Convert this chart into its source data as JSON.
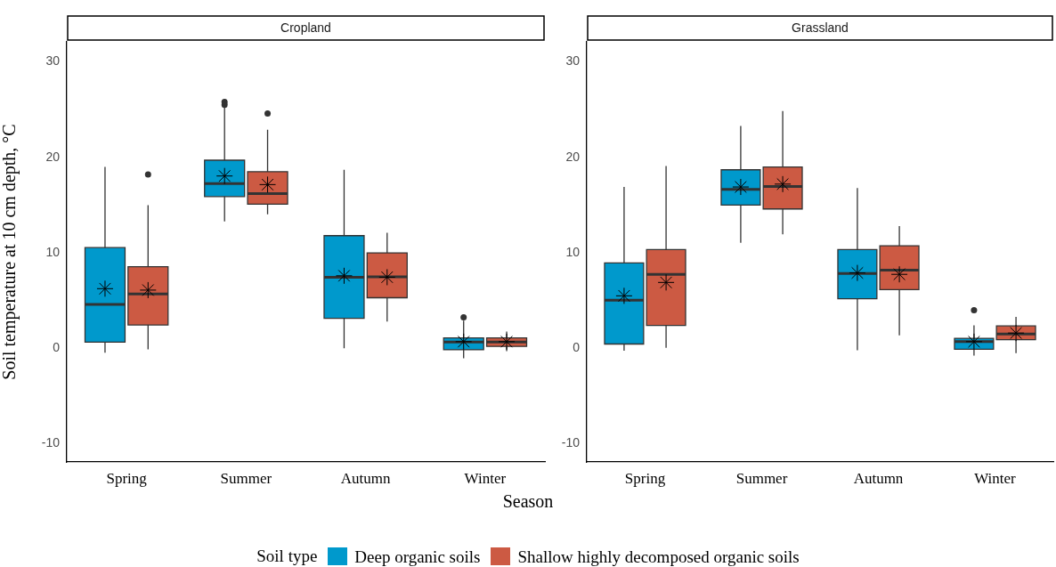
{
  "chart_data": [
    {
      "type": "box",
      "title": "Cropland",
      "xlabel": "Season",
      "ylabel": "Soil temperature at 10 cm depth, °C",
      "legend": "bottom",
      "legend_title": "Soil type",
      "grid": false,
      "categories": [
        "Spring",
        "Summer",
        "Autumn",
        "Winter"
      ],
      "ylim": [
        -11.9,
        32.1
      ],
      "yticks": [
        -10,
        0,
        10,
        20,
        30
      ],
      "series": [
        {
          "name": "Deep organic soils",
          "color": "#0099cc",
          "boxes": [
            {
              "low": -0.45,
              "q1": 0.65,
              "median": 4.6,
              "q3": 10.55,
              "high": 19.0,
              "mean": 6.25
            },
            {
              "low": 13.3,
              "q1": 15.9,
              "median": 17.25,
              "q3": 19.7,
              "high": 25.4,
              "mean": 18.05,
              "outliers": [
                25.5,
                25.8
              ]
            },
            {
              "low": 0.0,
              "q1": 3.15,
              "median": 7.45,
              "q3": 11.8,
              "high": 18.7,
              "mean": 7.6
            },
            {
              "low": -1.05,
              "q1": -0.15,
              "median": 0.65,
              "q3": 1.1,
              "high": 2.9,
              "mean": 0.7,
              "outliers": [
                3.25
              ]
            }
          ]
        },
        {
          "name": "Shallow highly decomposed organic soils",
          "color": "#cc5a43",
          "boxes": [
            {
              "low": -0.1,
              "q1": 2.45,
              "median": 5.7,
              "q3": 8.55,
              "high": 15.0,
              "mean": 6.1,
              "outliers": [
                18.2
              ]
            },
            {
              "low": 14.05,
              "q1": 15.1,
              "median": 16.2,
              "q3": 18.5,
              "high": 22.9,
              "mean": 17.15,
              "outliers": [
                24.6
              ]
            },
            {
              "low": 2.8,
              "q1": 5.3,
              "median": 7.5,
              "q3": 10.0,
              "high": 12.1,
              "mean": 7.45
            },
            {
              "low": -0.3,
              "q1": 0.2,
              "median": 0.65,
              "q3": 1.1,
              "high": 1.75,
              "mean": 0.7
            }
          ]
        }
      ]
    },
    {
      "type": "box",
      "title": "Grassland",
      "grid": false,
      "categories": [
        "Spring",
        "Summer",
        "Autumn",
        "Winter"
      ],
      "ylim": [
        -11.9,
        32.1
      ],
      "yticks": [
        -10,
        0,
        10,
        20,
        30
      ],
      "series": [
        {
          "color": "#0099cc",
          "boxes": [
            {
              "low": -0.25,
              "q1": 0.45,
              "median": 5.05,
              "q3": 8.95,
              "high": 16.9,
              "mean": 5.5
            },
            {
              "low": 11.05,
              "q1": 15.0,
              "median": 16.65,
              "q3": 18.7,
              "high": 23.3,
              "mean": 16.9
            },
            {
              "low": -0.2,
              "q1": 5.2,
              "median": 7.85,
              "q3": 10.35,
              "high": 16.8,
              "mean": 7.9
            },
            {
              "low": -0.75,
              "q1": -0.1,
              "median": 0.7,
              "q3": 1.05,
              "high": 2.4,
              "mean": 0.7,
              "outliers": [
                4.0
              ]
            }
          ]
        },
        {
          "color": "#cc5a43",
          "boxes": [
            {
              "low": 0.05,
              "q1": 2.4,
              "median": 7.75,
              "q3": 10.35,
              "high": 19.1,
              "mean": 6.9
            },
            {
              "low": 11.95,
              "q1": 14.6,
              "median": 16.95,
              "q3": 19.0,
              "high": 24.85,
              "mean": 17.2
            },
            {
              "low": 1.35,
              "q1": 6.15,
              "median": 8.2,
              "q3": 10.75,
              "high": 12.8,
              "mean": 7.75
            },
            {
              "low": -0.5,
              "q1": 0.9,
              "median": 1.5,
              "q3": 2.35,
              "high": 3.3,
              "mean": 1.6
            }
          ]
        }
      ]
    }
  ]
}
